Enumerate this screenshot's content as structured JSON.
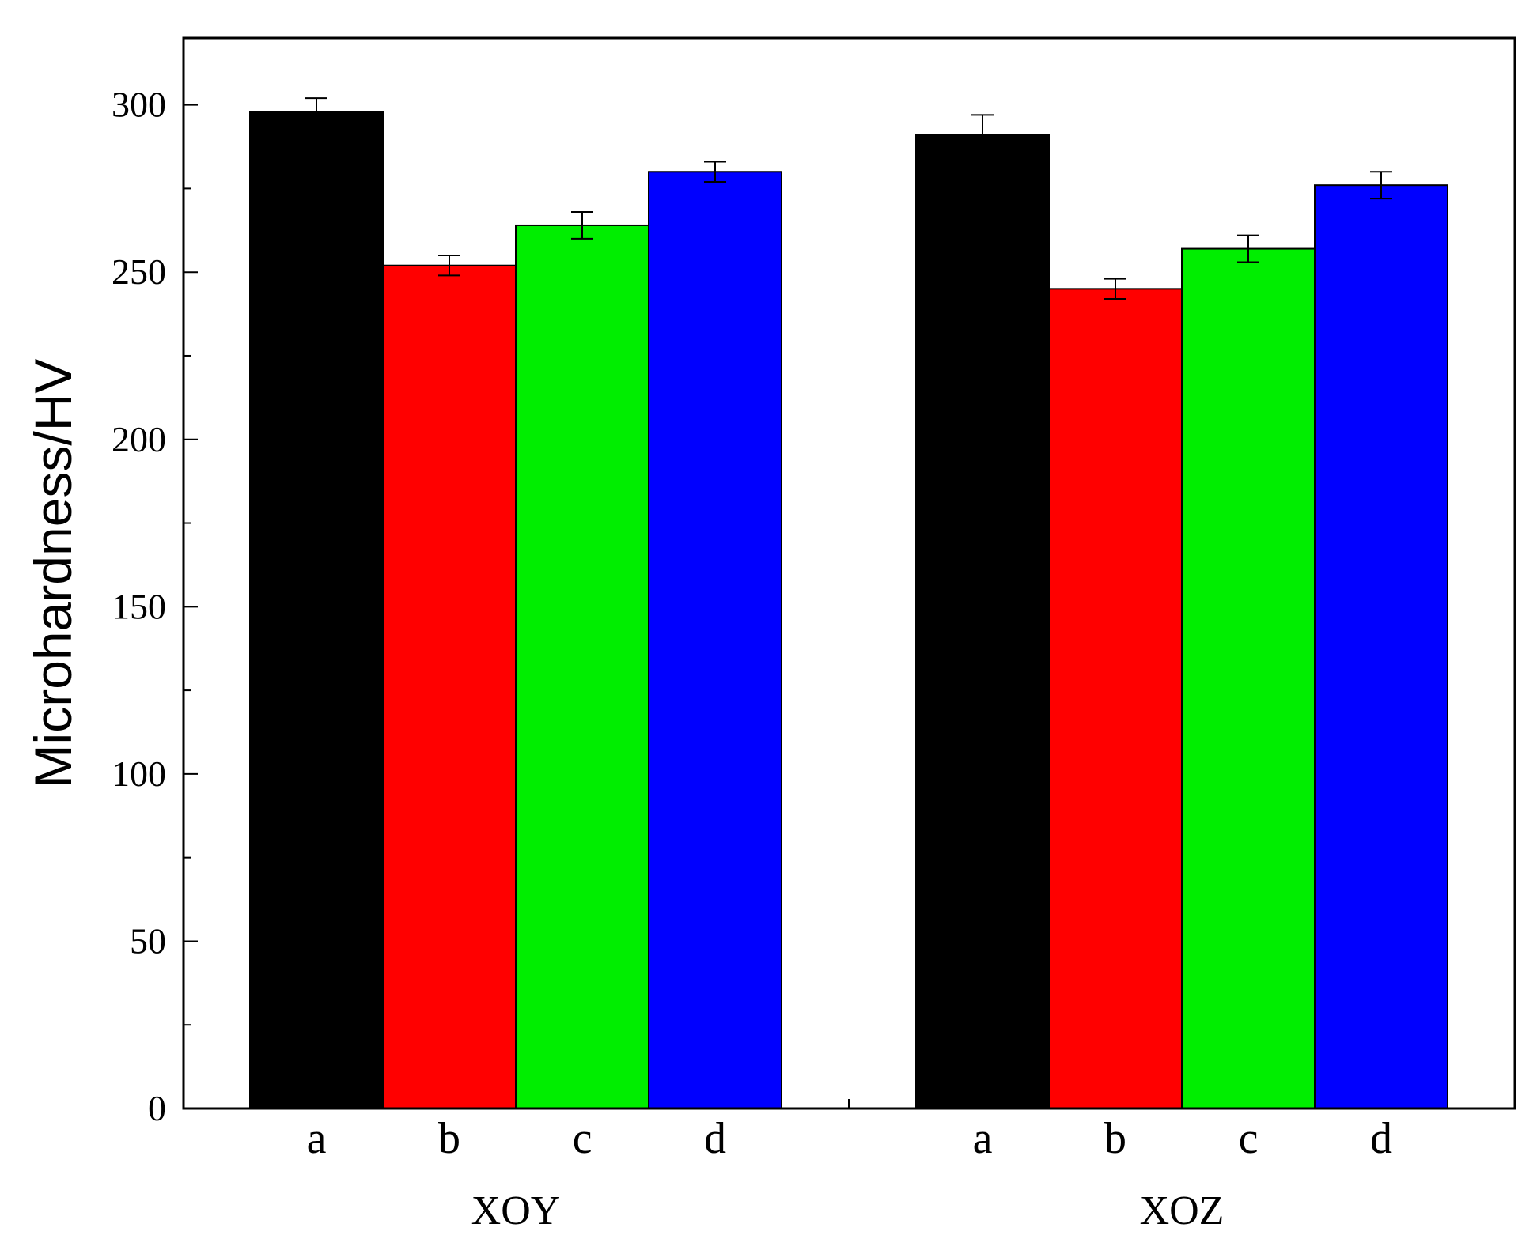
{
  "chart_data": {
    "type": "bar",
    "title": "",
    "xlabel": "",
    "ylabel": "Microhardness/HV",
    "ylim": [
      0,
      320
    ],
    "yticks": [
      0,
      50,
      100,
      150,
      200,
      250,
      300
    ],
    "grid": false,
    "legend": "none",
    "groups": [
      {
        "name": "XOY",
        "bars": [
          {
            "category": "a",
            "value": 298,
            "error": 4,
            "color": "#000000"
          },
          {
            "category": "b",
            "value": 252,
            "error": 3,
            "color": "#ff0000"
          },
          {
            "category": "c",
            "value": 264,
            "error": 4,
            "color": "#00ee00"
          },
          {
            "category": "d",
            "value": 280,
            "error": 3,
            "color": "#0000ff"
          }
        ]
      },
      {
        "name": "XOZ",
        "bars": [
          {
            "category": "a",
            "value": 291,
            "error": 6,
            "color": "#000000"
          },
          {
            "category": "b",
            "value": 245,
            "error": 3,
            "color": "#ff0000"
          },
          {
            "category": "c",
            "value": 257,
            "error": 4,
            "color": "#00ee00"
          },
          {
            "category": "d",
            "value": 276,
            "error": 4,
            "color": "#0000ff"
          }
        ]
      }
    ]
  }
}
